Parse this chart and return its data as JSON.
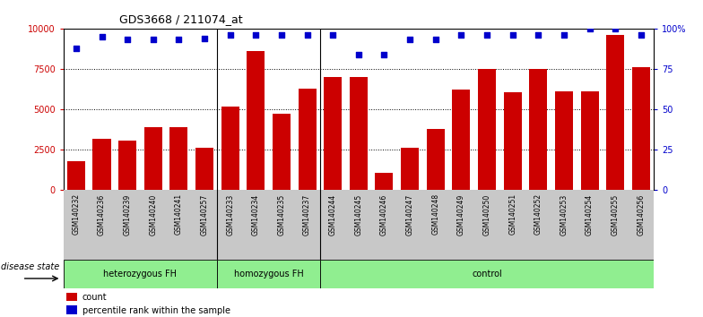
{
  "title": "GDS3668 / 211074_at",
  "samples": [
    "GSM140232",
    "GSM140236",
    "GSM140239",
    "GSM140240",
    "GSM140241",
    "GSM140257",
    "GSM140233",
    "GSM140234",
    "GSM140235",
    "GSM140237",
    "GSM140244",
    "GSM140245",
    "GSM140246",
    "GSM140247",
    "GSM140248",
    "GSM140249",
    "GSM140250",
    "GSM140251",
    "GSM140252",
    "GSM140253",
    "GSM140254",
    "GSM140255",
    "GSM140256"
  ],
  "counts": [
    1800,
    3200,
    3050,
    3900,
    3900,
    2600,
    5200,
    8600,
    4750,
    6300,
    7000,
    7000,
    1100,
    2600,
    3800,
    6200,
    7500,
    6050,
    7500,
    6100,
    6100,
    9600,
    7600
  ],
  "percentiles": [
    88,
    95,
    93,
    93,
    93,
    94,
    96,
    96,
    96,
    96,
    96,
    84,
    84,
    93,
    93,
    96,
    96,
    96,
    96,
    96,
    100,
    100,
    96
  ],
  "group_boundaries": [
    0,
    6,
    10,
    23
  ],
  "group_labels": [
    "heterozygous FH",
    "homozygous FH",
    "control"
  ],
  "bar_color": "#CC0000",
  "dot_color": "#0000CC",
  "ylim_left": [
    0,
    10000
  ],
  "ylim_right": [
    0,
    100
  ],
  "yticks_left": [
    0,
    2500,
    5000,
    7500,
    10000
  ],
  "yticks_right": [
    0,
    25,
    50,
    75,
    100
  ],
  "grid_values": [
    2500,
    5000,
    7500
  ],
  "tick_color_left": "#CC0000",
  "tick_color_right": "#0000CC",
  "green_color": "#90EE90",
  "gray_color": "#C8C8C8",
  "disease_state_label": "disease state"
}
